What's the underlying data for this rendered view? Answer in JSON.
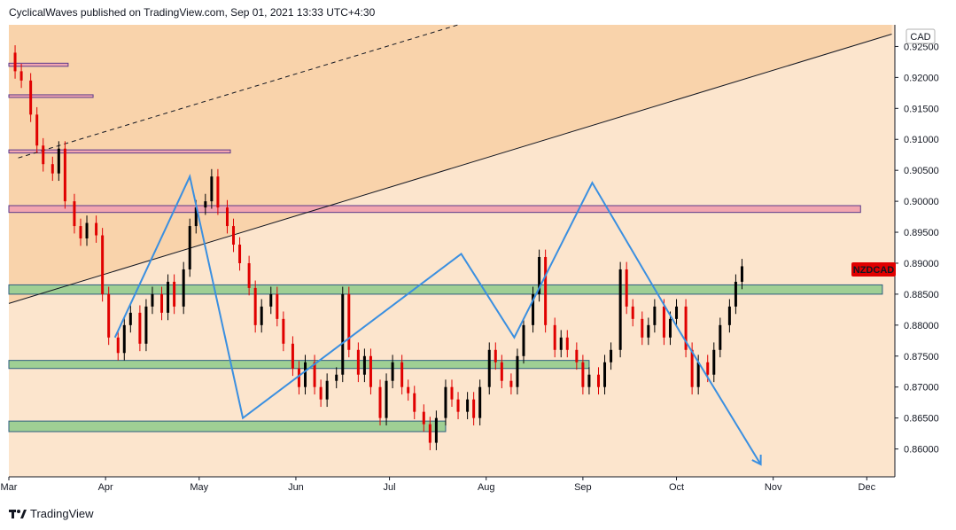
{
  "header": {
    "text": "CyclicalWaves published on TradingView.com, Sep 01, 2021 13:33 UTC+4:30"
  },
  "footer": {
    "brand": "TradingView",
    "logo_icon": "tradingview-logo-icon"
  },
  "colors": {
    "background": "#fce5cd",
    "channel_fill": "#f9d3ab",
    "candle_up": "#000000",
    "candle_down": "#e00000",
    "projection": "#3a8fe0",
    "support_zone": "#9fcf94",
    "support_zone_border": "#2d5e7f",
    "resistance_zone": "#f2a6b0",
    "resistance_zone_border": "#5b3a8a",
    "price_badge": "#e00000"
  },
  "chart_data": {
    "type": "candlestick",
    "symbol": "NZDCAD",
    "currency_label": "CAD",
    "x_tick_labels": [
      "Mar",
      "Apr",
      "May",
      "Jun",
      "Jul",
      "Aug",
      "Sep",
      "Oct",
      "Nov",
      "Dec"
    ],
    "y_tick_labels": [
      "0.92500",
      "0.92000",
      "0.91500",
      "0.91000",
      "0.90500",
      "0.90000",
      "0.89500",
      "0.89000",
      "0.88500",
      "0.88000",
      "0.87500",
      "0.87000",
      "0.86500",
      "0.86000"
    ],
    "xlim": [
      "2021-03-01",
      "2021-12-10"
    ],
    "ylim": [
      0.8555,
      0.9285
    ],
    "grid": false,
    "price_path": [
      [
        "2021-03-01",
        0.924
      ],
      [
        "2021-03-03",
        0.921
      ],
      [
        "2021-03-05",
        0.9195
      ],
      [
        "2021-03-08",
        0.914
      ],
      [
        "2021-03-10",
        0.909
      ],
      [
        "2021-03-12",
        0.906
      ],
      [
        "2021-03-15",
        0.9045
      ],
      [
        "2021-03-17",
        0.9085
      ],
      [
        "2021-03-19",
        0.9
      ],
      [
        "2021-03-22",
        0.896
      ],
      [
        "2021-03-24",
        0.894
      ],
      [
        "2021-03-26",
        0.8965
      ],
      [
        "2021-03-29",
        0.8945
      ],
      [
        "2021-03-31",
        0.885
      ],
      [
        "2021-04-02",
        0.878
      ],
      [
        "2021-04-05",
        0.8755
      ],
      [
        "2021-04-07",
        0.88
      ],
      [
        "2021-04-09",
        0.882
      ],
      [
        "2021-04-12",
        0.877
      ],
      [
        "2021-04-14",
        0.883
      ],
      [
        "2021-04-16",
        0.885
      ],
      [
        "2021-04-19",
        0.882
      ],
      [
        "2021-04-21",
        0.887
      ],
      [
        "2021-04-23",
        0.883
      ],
      [
        "2021-04-26",
        0.889
      ],
      [
        "2021-04-28",
        0.896
      ],
      [
        "2021-04-30",
        0.899
      ],
      [
        "2021-05-03",
        0.9
      ],
      [
        "2021-05-05",
        0.904
      ],
      [
        "2021-05-07",
        0.899
      ],
      [
        "2021-05-10",
        0.896
      ],
      [
        "2021-05-12",
        0.893
      ],
      [
        "2021-05-14",
        0.89
      ],
      [
        "2021-05-17",
        0.886
      ],
      [
        "2021-05-19",
        0.88
      ],
      [
        "2021-05-21",
        0.883
      ],
      [
        "2021-05-24",
        0.885
      ],
      [
        "2021-05-26",
        0.881
      ],
      [
        "2021-05-28",
        0.877
      ],
      [
        "2021-05-31",
        0.873
      ],
      [
        "2021-06-02",
        0.87
      ],
      [
        "2021-06-04",
        0.874
      ],
      [
        "2021-06-07",
        0.87
      ],
      [
        "2021-06-09",
        0.868
      ],
      [
        "2021-06-11",
        0.871
      ],
      [
        "2021-06-14",
        0.872
      ],
      [
        "2021-06-16",
        0.885
      ],
      [
        "2021-06-18",
        0.876
      ],
      [
        "2021-06-21",
        0.872
      ],
      [
        "2021-06-23",
        0.875
      ],
      [
        "2021-06-25",
        0.87
      ],
      [
        "2021-06-28",
        0.865
      ],
      [
        "2021-06-30",
        0.871
      ],
      [
        "2021-07-02",
        0.874
      ],
      [
        "2021-07-05",
        0.87
      ],
      [
        "2021-07-07",
        0.869
      ],
      [
        "2021-07-09",
        0.866
      ],
      [
        "2021-07-12",
        0.864
      ],
      [
        "2021-07-14",
        0.861
      ],
      [
        "2021-07-16",
        0.865
      ],
      [
        "2021-07-19",
        0.87
      ],
      [
        "2021-07-21",
        0.868
      ],
      [
        "2021-07-23",
        0.866
      ],
      [
        "2021-07-26",
        0.868
      ],
      [
        "2021-07-28",
        0.865
      ],
      [
        "2021-07-30",
        0.87
      ],
      [
        "2021-08-02",
        0.876
      ],
      [
        "2021-08-04",
        0.874
      ],
      [
        "2021-08-06",
        0.871
      ],
      [
        "2021-08-09",
        0.87
      ],
      [
        "2021-08-11",
        0.875
      ],
      [
        "2021-08-13",
        0.88
      ],
      [
        "2021-08-16",
        0.885
      ],
      [
        "2021-08-18",
        0.891
      ],
      [
        "2021-08-20",
        0.88
      ],
      [
        "2021-08-23",
        0.876
      ],
      [
        "2021-08-25",
        0.878
      ],
      [
        "2021-08-27",
        0.876
      ],
      [
        "2021-08-30",
        0.874
      ],
      [
        "2021-09-01",
        0.87
      ],
      [
        "2021-09-03",
        0.872
      ],
      [
        "2021-09-06",
        0.87
      ],
      [
        "2021-09-08",
        0.874
      ],
      [
        "2021-09-10",
        0.876
      ],
      [
        "2021-09-13",
        0.889
      ],
      [
        "2021-09-15",
        0.883
      ],
      [
        "2021-09-17",
        0.881
      ],
      [
        "2021-09-20",
        0.878
      ],
      [
        "2021-09-22",
        0.88
      ],
      [
        "2021-09-24",
        0.883
      ],
      [
        "2021-09-27",
        0.878
      ],
      [
        "2021-09-29",
        0.881
      ],
      [
        "2021-10-01",
        0.883
      ],
      [
        "2021-10-04",
        0.876
      ],
      [
        "2021-10-06",
        0.87
      ],
      [
        "2021-10-08",
        0.874
      ],
      [
        "2021-10-11",
        0.872
      ],
      [
        "2021-10-13",
        0.876
      ],
      [
        "2021-10-15",
        0.88
      ],
      [
        "2021-10-18",
        0.883
      ],
      [
        "2021-10-20",
        0.887
      ],
      [
        "2021-10-22",
        0.8895
      ]
    ],
    "zones": [
      {
        "kind": "resistance",
        "y": [
          0.9168,
          0.9172
        ],
        "x": [
          "2021-03-01",
          "2021-03-28"
        ]
      },
      {
        "kind": "resistance",
        "y": [
          0.9218,
          0.9223
        ],
        "x": [
          "2021-03-01",
          "2021-03-20"
        ]
      },
      {
        "kind": "resistance",
        "y": [
          0.9078,
          0.9083
        ],
        "x": [
          "2021-03-01",
          "2021-05-11"
        ]
      },
      {
        "kind": "resistance",
        "y": [
          0.8982,
          0.8993
        ],
        "x": [
          "2021-03-01",
          "2021-11-29"
        ]
      },
      {
        "kind": "support",
        "y": [
          0.885,
          0.8865
        ],
        "x": [
          "2021-03-01",
          "2021-12-06"
        ]
      },
      {
        "kind": "support",
        "y": [
          0.873,
          0.8743
        ],
        "x": [
          "2021-03-01",
          "2021-09-03"
        ]
      },
      {
        "kind": "support",
        "y": [
          0.8628,
          0.8645
        ],
        "x": [
          "2021-03-01",
          "2021-07-19"
        ]
      }
    ],
    "trendlines": [
      {
        "style": "solid",
        "from": [
          "2021-03-01",
          0.8835
        ],
        "to": [
          "2021-12-09",
          0.927
        ]
      },
      {
        "style": "dashed",
        "from": [
          "2021-03-04",
          0.907
        ],
        "to": [
          "2021-07-23",
          0.9285
        ]
      }
    ],
    "projection_path": [
      [
        "2021-04-04",
        0.878
      ],
      [
        "2021-04-28",
        0.904
      ],
      [
        "2021-05-15",
        0.865
      ],
      [
        "2021-07-24",
        0.8915
      ],
      [
        "2021-08-10",
        0.878
      ],
      [
        "2021-09-04",
        0.903
      ],
      [
        "2021-10-02",
        0.879
      ],
      [
        "2021-10-28",
        0.8575
      ]
    ],
    "last_price_badge": {
      "label": "NZDCAD",
      "price": 0.889
    }
  }
}
